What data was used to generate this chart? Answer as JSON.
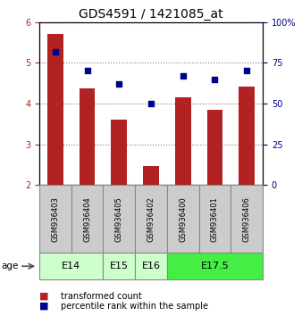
{
  "title": "GDS4591 / 1421085_at",
  "samples": [
    "GSM936403",
    "GSM936404",
    "GSM936405",
    "GSM936402",
    "GSM936400",
    "GSM936401",
    "GSM936406"
  ],
  "transformed_count": [
    5.72,
    4.38,
    3.6,
    2.47,
    4.15,
    3.85,
    4.42
  ],
  "percentile_rank": [
    82,
    70,
    62,
    50,
    67,
    65,
    70
  ],
  "ylim_left": [
    2,
    6
  ],
  "ylim_right": [
    0,
    100
  ],
  "yticks_left": [
    2,
    3,
    4,
    5,
    6
  ],
  "yticks_right": [
    0,
    25,
    50,
    75,
    100
  ],
  "bar_color": "#b22222",
  "dot_color": "#00008b",
  "bar_width": 0.5,
  "groups": [
    {
      "label": "E14",
      "indices": [
        0,
        1
      ],
      "color": "#ccffcc",
      "border_color": "#888888"
    },
    {
      "label": "E15",
      "indices": [
        2
      ],
      "color": "#ccffcc",
      "border_color": "#888888"
    },
    {
      "label": "E16",
      "indices": [
        3
      ],
      "color": "#ccffcc",
      "border_color": "#888888"
    },
    {
      "label": "E17.5",
      "indices": [
        4,
        5,
        6
      ],
      "color": "#44ee44",
      "border_color": "#888888"
    }
  ],
  "sample_box_color": "#cccccc",
  "age_label": "age",
  "legend_items": [
    {
      "color": "#b22222",
      "label": "transformed count"
    },
    {
      "color": "#00008b",
      "label": "percentile rank within the sample"
    }
  ],
  "title_fontsize": 10,
  "tick_fontsize": 7,
  "sample_fontsize": 6,
  "group_fontsize": 8,
  "legend_fontsize": 7
}
